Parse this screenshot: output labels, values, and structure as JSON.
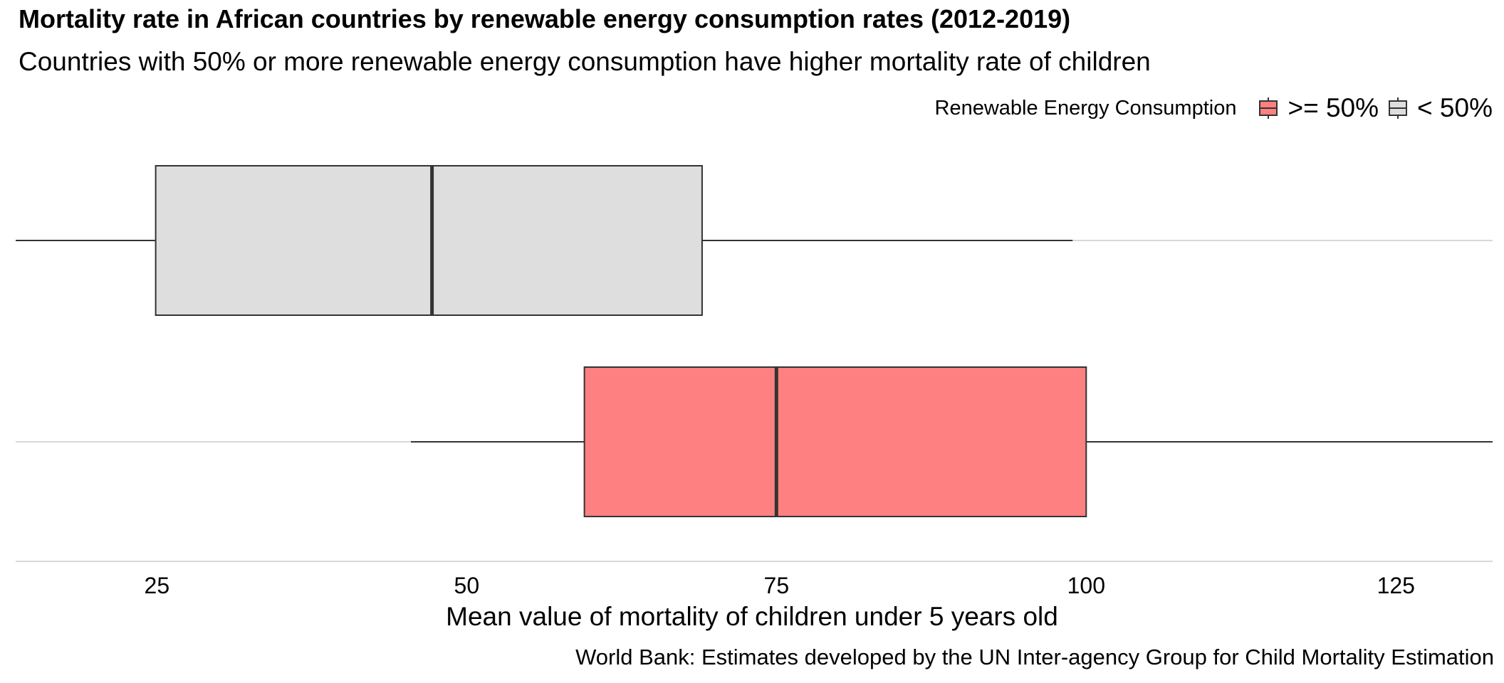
{
  "chart_data": {
    "type": "boxplot",
    "orientation": "horizontal",
    "title": "Mortality rate in African countries by renewable energy consumption rates (2012-2019)",
    "subtitle": "Countries with 50% or more renewable energy consumption have higher mortality rate of children",
    "xlabel": "Mean value of mortality of children under 5 years old",
    "caption": "World Bank: Estimates developed by the UN Inter-agency Group for Child Mortality Estimation",
    "legend": {
      "title": "Renewable Energy Consumption",
      "placement": "top-right",
      "entries": [
        {
          "label": ">= 50%",
          "color": "#ff8080"
        },
        {
          "label": "< 50%",
          "color": "#dedede"
        }
      ]
    },
    "xlim": [
      13.6,
      132.8
    ],
    "xticks": [
      25,
      50,
      75,
      100,
      125
    ],
    "grid": "horizontal-only",
    "series": [
      {
        "group": "< 50%",
        "whisker_low": 13.6,
        "q1": 24.9,
        "median": 47.2,
        "q3": 69.0,
        "whisker_high": 98.9,
        "color": "#dedede"
      },
      {
        "group": ">= 50%",
        "whisker_low": 45.5,
        "q1": 59.5,
        "median": 75.0,
        "q3": 100.0,
        "whisker_high": 132.8,
        "color": "#ff8080"
      }
    ]
  }
}
